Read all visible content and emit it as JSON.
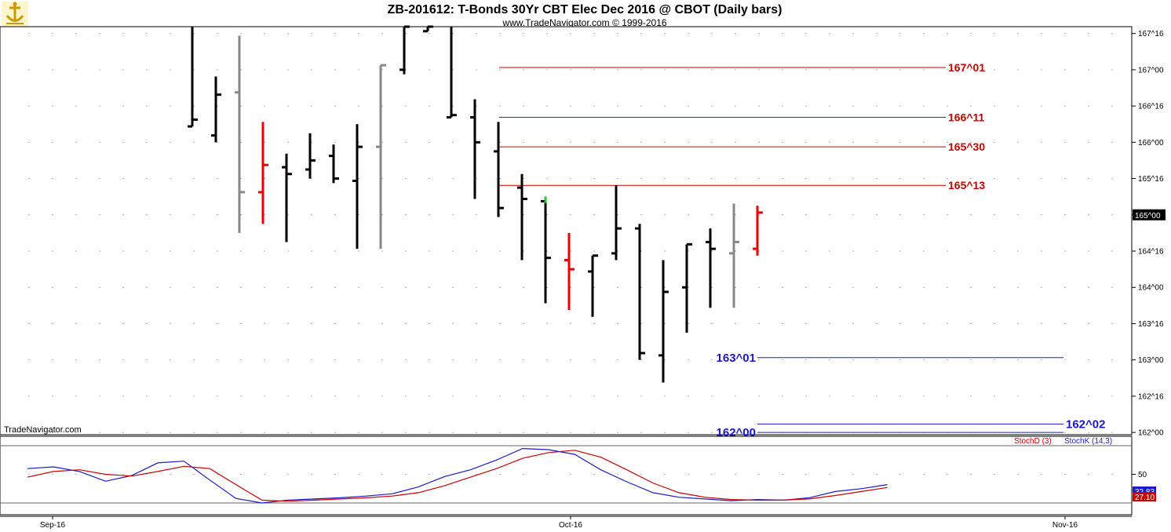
{
  "header": {
    "title": "ZB-201612:  T-Bonds 30Yr CBT Elec Dec 2016 @ CBOT  (Daily bars)",
    "subtitle": "www.TradeNavigator.com © 1999-2016",
    "watermark": "TradeNavigator.com",
    "logo_icon": "ship-anchor-logo-icon"
  },
  "chart_data": [
    {
      "type": "bar",
      "subtype": "ohlc",
      "name": "ZB-201612 daily bars",
      "unit": "points (1/32nds, NNN^TT)",
      "y_ticks": [
        "162^00",
        "162^16",
        "163^00",
        "163^16",
        "164^00",
        "164^16",
        "165^00",
        "165^16",
        "166^00",
        "166^16",
        "167^00",
        "167^16"
      ],
      "ylim": [
        "161^31",
        "167^19"
      ],
      "x_ticks": [
        "Sep-16",
        "Oct-16",
        "Nov-16"
      ],
      "current_price": "165^00",
      "colors": {
        "up": "#000000",
        "down": "#000000",
        "red": "#ee0000",
        "gray": "#888888",
        "green": "#22cc22"
      },
      "bars": [
        {
          "h": "167^21",
          "l": "166^07",
          "o": "166^07",
          "c": "166^10",
          "color": "#000000"
        },
        {
          "h": "166^29",
          "l": "166^00",
          "o": "166^03",
          "c": "166^21",
          "color": "#000000"
        },
        {
          "h": "167^15",
          "l": "164^24",
          "o": "166^22",
          "c": "165^10",
          "color": "#888888"
        },
        {
          "h": "166^09",
          "l": "164^28",
          "o": "165^10",
          "c": "165^22",
          "color": "#ee0000"
        },
        {
          "h": "165^27",
          "l": "164^20",
          "o": "165^21",
          "c": "165^18",
          "color": "#000000"
        },
        {
          "h": "166^04",
          "l": "165^16",
          "o": "165^20",
          "c": "165^24",
          "color": "#000000"
        },
        {
          "h": "165^31",
          "l": "165^14",
          "o": "165^26",
          "c": "165^16",
          "color": "#000000"
        },
        {
          "h": "166^08",
          "l": "164^17",
          "o": "165^15",
          "c": "165^30",
          "color": "#000000"
        },
        {
          "h": "167^02",
          "l": "164^17",
          "o": "165^30",
          "c": "167^02",
          "color": "#888888"
        },
        {
          "h": "167^19",
          "l": "166^30",
          "o": "167^00",
          "c": "167^19",
          "color": "#000000"
        },
        {
          "h": "167^19",
          "l": "167^17",
          "o": "167^17",
          "c": "167^19",
          "color": "#000000"
        },
        {
          "h": "167^19",
          "l": "166^11",
          "o": "166^11",
          "c": "166^12",
          "color": "#000000"
        },
        {
          "h": "166^19",
          "l": "165^07",
          "o": "166^11",
          "c": "166^00",
          "color": "#000000"
        },
        {
          "h": "166^09",
          "l": "164^31",
          "o": "165^28",
          "c": "165^03",
          "color": "#000000"
        },
        {
          "h": "165^18",
          "l": "164^12",
          "o": "165^12",
          "c": "165^07",
          "color": "#000000"
        },
        {
          "h": "165^08",
          "l": "163^25",
          "o": "165^06",
          "c": "164^13",
          "color": "#000000"
        },
        {
          "h": "164^24",
          "l": "163^22",
          "o": "164^12",
          "c": "164^08",
          "color": "#ee0000"
        },
        {
          "h": "164^14",
          "l": "163^19",
          "o": "164^07",
          "c": "164^14",
          "color": "#000000"
        },
        {
          "h": "165^13",
          "l": "164^12",
          "o": "164^15",
          "c": "164^26",
          "color": "#000000"
        },
        {
          "h": "164^28",
          "l": "163^00",
          "o": "164^26",
          "c": "163^03",
          "color": "#000000"
        },
        {
          "h": "164^12",
          "l": "162^22",
          "o": "163^02",
          "c": "163^30",
          "color": "#000000"
        },
        {
          "h": "164^19",
          "l": "163^12",
          "o": "164^00",
          "c": "164^19",
          "color": "#000000"
        },
        {
          "h": "164^26",
          "l": "163^23",
          "o": "164^20",
          "c": "164^17",
          "color": "#000000"
        },
        {
          "h": "165^05",
          "l": "163^23",
          "o": "164^15",
          "c": "164^20",
          "color": "#888888"
        },
        {
          "h": "165^04",
          "l": "164^14",
          "o": "164^17",
          "c": "165^01",
          "color": "#ee0000"
        }
      ]
    },
    {
      "type": "hline",
      "name": "price levels",
      "levels": [
        {
          "label": "167^01",
          "value": "167^01",
          "color": "#cc0000",
          "from_bar": 13,
          "to_bar": 27,
          "label_pos": "right"
        },
        {
          "label": "166^11",
          "value": "166^11",
          "color": "#cc0000",
          "from_bar": 13,
          "to_bar": 27,
          "label_pos": "right"
        },
        {
          "label": "165^30",
          "value": "165^30",
          "color": "#cc0000",
          "from_bar": 13,
          "to_bar": 27,
          "label_pos": "right"
        },
        {
          "label": "165^13",
          "value": "165^13",
          "color": "#cc0000",
          "from_bar": 13,
          "to_bar": 27,
          "label_pos": "right"
        },
        {
          "label": "163^01",
          "value": "163^01",
          "color": "#1a1acc",
          "from_bar": 19,
          "to_bar": 38,
          "label_pos": "left"
        },
        {
          "label": "162^00",
          "value": "162^00",
          "color": "#1a1acc",
          "from_bar": 19,
          "to_bar": 38,
          "label_pos": "left"
        },
        {
          "label": "162^02",
          "value": "162^02",
          "color": "#1a1acc",
          "from_bar": 19,
          "to_bar": 38,
          "label_pos": "right"
        }
      ]
    },
    {
      "type": "line",
      "name": "stochastic",
      "ylim": [
        0,
        100
      ],
      "y_ticks": [
        50
      ],
      "reference_lines": [
        0,
        100
      ],
      "legend": [
        {
          "label": "StochD (3)",
          "color": "#cc0000"
        },
        {
          "label": "StochK (14,3)",
          "color": "#1a1acc"
        }
      ],
      "last_values": [
        {
          "label": "32.83",
          "color": "#1a1acc"
        },
        {
          "label": "27.10",
          "color": "#cc0000"
        }
      ],
      "series": [
        {
          "name": "StochK (14,3)",
          "color": "#1a1acc",
          "values": [
            [
              0,
              60
            ],
            [
              1,
              63
            ],
            [
              2,
              55
            ],
            [
              3,
              38
            ],
            [
              4,
              48
            ],
            [
              5,
              70
            ],
            [
              6,
              73
            ],
            [
              7,
              40
            ],
            [
              8,
              8
            ],
            [
              9,
              0
            ],
            [
              10,
              5
            ],
            [
              11,
              7
            ],
            [
              12,
              9
            ],
            [
              13,
              12
            ],
            [
              14,
              16
            ],
            [
              15,
              28
            ],
            [
              16,
              46
            ],
            [
              17,
              58
            ],
            [
              18,
              75
            ],
            [
              19,
              95
            ],
            [
              20,
              93
            ],
            [
              21,
              85
            ],
            [
              22,
              58
            ],
            [
              23,
              37
            ],
            [
              24,
              18
            ],
            [
              25,
              10
            ],
            [
              26,
              7
            ],
            [
              27,
              4
            ],
            [
              28,
              6
            ],
            [
              29,
              5
            ],
            [
              30,
              9
            ],
            [
              31,
              20
            ],
            [
              32,
              25
            ],
            [
              33,
              32
            ]
          ]
        },
        {
          "name": "StochD (3)",
          "color": "#cc0000",
          "values": [
            [
              0,
              45
            ],
            [
              1,
              55
            ],
            [
              2,
              58
            ],
            [
              3,
              50
            ],
            [
              4,
              47
            ],
            [
              5,
              55
            ],
            [
              6,
              64
            ],
            [
              7,
              60
            ],
            [
              8,
              32
            ],
            [
              9,
              5
            ],
            [
              10,
              3
            ],
            [
              11,
              5
            ],
            [
              12,
              7
            ],
            [
              13,
              9
            ],
            [
              14,
              12
            ],
            [
              15,
              18
            ],
            [
              16,
              30
            ],
            [
              17,
              45
            ],
            [
              18,
              60
            ],
            [
              19,
              78
            ],
            [
              20,
              88
            ],
            [
              21,
              92
            ],
            [
              22,
              80
            ],
            [
              23,
              58
            ],
            [
              24,
              35
            ],
            [
              25,
              18
            ],
            [
              26,
              10
            ],
            [
              27,
              6
            ],
            [
              28,
              5
            ],
            [
              29,
              5
            ],
            [
              30,
              7
            ],
            [
              31,
              13
            ],
            [
              32,
              20
            ],
            [
              33,
              27
            ]
          ]
        }
      ]
    }
  ]
}
